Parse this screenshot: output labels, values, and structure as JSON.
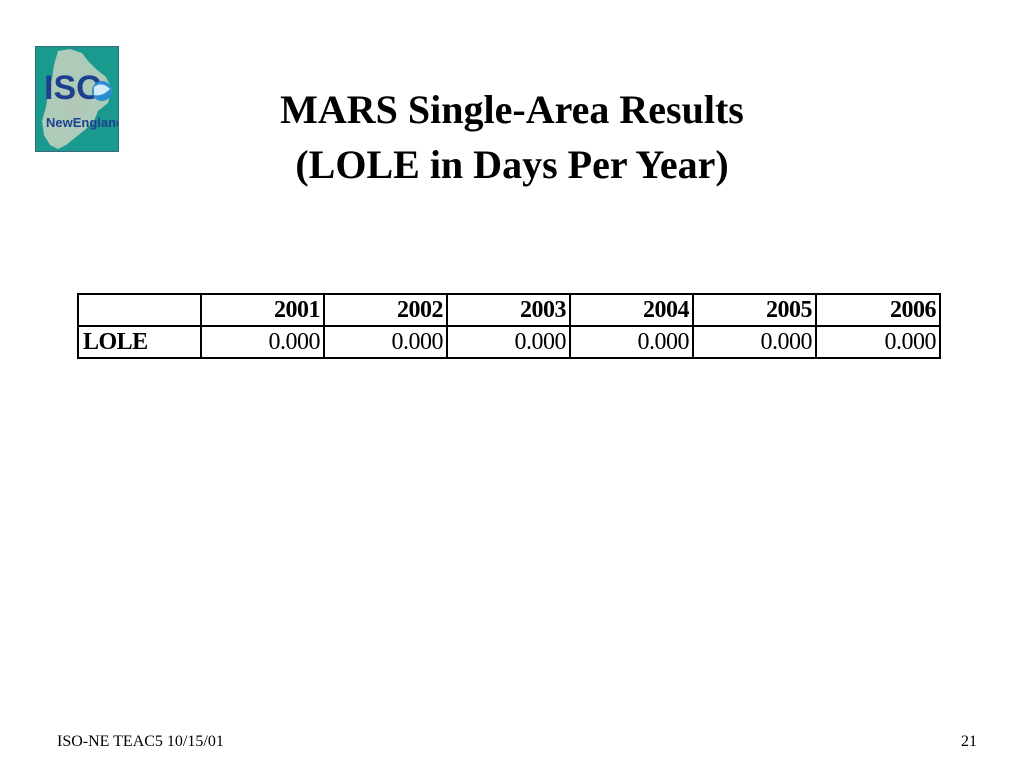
{
  "logo": {
    "line1": "ISO",
    "line2": "NewEngland",
    "background_color": "#1a9a8f",
    "map_color": "#c9d3c2",
    "text_color": "#1d3f8f"
  },
  "title": {
    "line1": "MARS Single-Area Results",
    "line2": "(LOLE in Days Per Year)"
  },
  "table": {
    "corner": "",
    "columns": [
      "2001",
      "2002",
      "2003",
      "2004",
      "2005",
      "2006"
    ],
    "rows": [
      {
        "label": "LOLE",
        "values": [
          "0.000",
          "0.000",
          "0.000",
          "0.000",
          "0.000",
          "0.000"
        ]
      }
    ]
  },
  "footer": {
    "left": "ISO-NE TEAC5 10/15/01",
    "page_number": "21"
  }
}
